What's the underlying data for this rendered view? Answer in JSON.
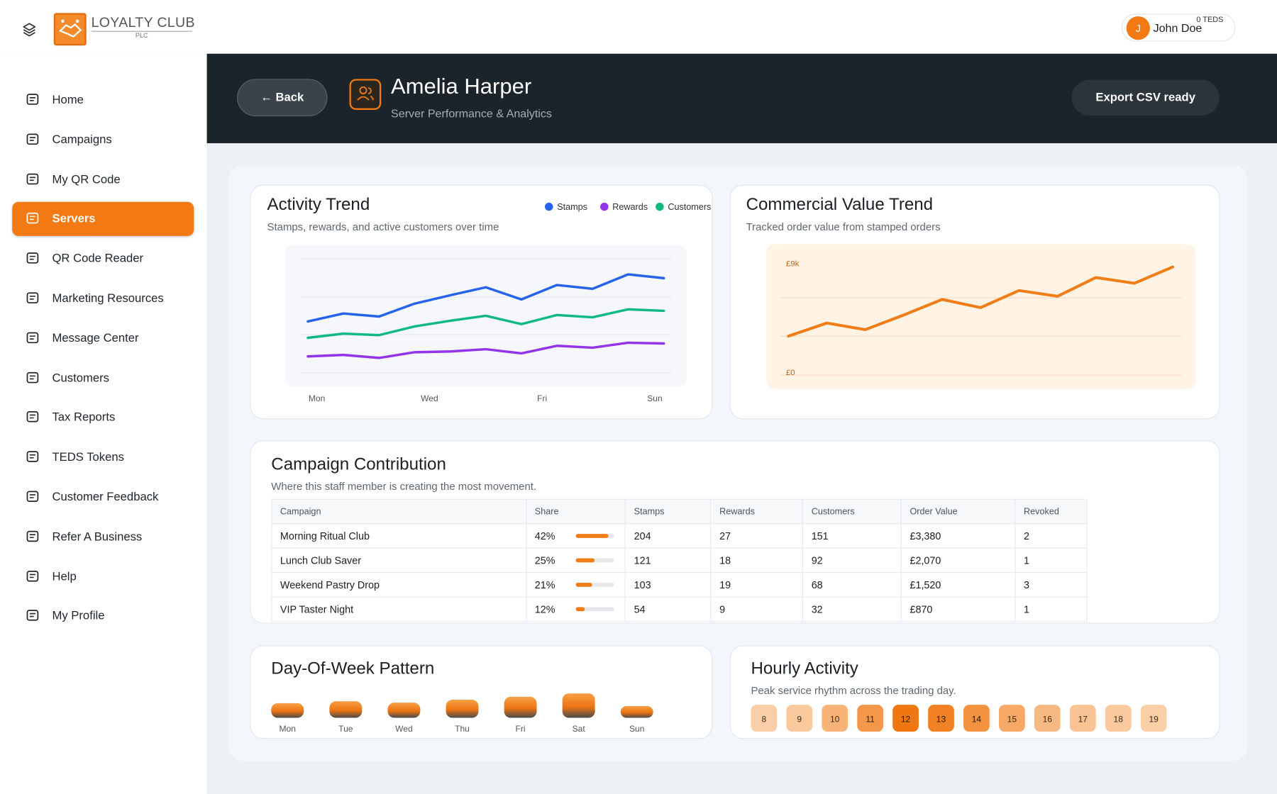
{
  "brand": {
    "name": "LOYALTY CLUB",
    "sub": "PLC"
  },
  "user": {
    "initial": "J",
    "name": "John Doe",
    "balance": "0 TEDS"
  },
  "nav": {
    "items": [
      "Home",
      "Campaigns",
      "My QR Code",
      "Servers",
      "QR Code Reader",
      "Marketing Resources",
      "Message Center",
      "Customers",
      "Tax Reports",
      "TEDS Tokens",
      "Customer Feedback",
      "Refer A Business",
      "Help",
      "My Profile"
    ],
    "active": 3
  },
  "header": {
    "back": "← Back",
    "name": "Amelia Harper",
    "subtitle": "Server Performance & Analytics",
    "export": "Export CSV ready"
  },
  "activity_trend": {
    "type": "line",
    "title": "Activity Trend",
    "subtitle": "Stamps, rewards, and active customers over time",
    "x_labels": [
      "Mon",
      "Wed",
      "Fri",
      "Sun"
    ],
    "ylim": [
      0,
      300
    ],
    "series": [
      {
        "name": "Stamps",
        "color": "#2563eb",
        "values": [
          135,
          156,
          148,
          182,
          204,
          225,
          193,
          231,
          221,
          259,
          249
        ]
      },
      {
        "name": "Rewards",
        "color": "#9333ea",
        "values": [
          43,
          47,
          39,
          54,
          56,
          62,
          51,
          71,
          66,
          79,
          77
        ]
      },
      {
        "name": "Customers",
        "color": "#10b981",
        "values": [
          92,
          103,
          99,
          122,
          137,
          150,
          128,
          152,
          146,
          167,
          163
        ]
      }
    ]
  },
  "value_trend": {
    "type": "line",
    "title": "Commercial Value Trend",
    "subtitle": "Tracked order value from stamped orders",
    "color": "#f07d16",
    "ylim": [
      0,
      9000
    ],
    "yticks": [
      {
        "value": 0,
        "label": "£0"
      },
      {
        "value": 9000,
        "label": "£9k"
      }
    ],
    "values": [
      3060,
      4090,
      3570,
      4720,
      5940,
      5300,
      6640,
      6190,
      7660,
      7210,
      8490
    ]
  },
  "campaigns": {
    "title": "Campaign Contribution",
    "subtitle": "Where this staff member is creating the most movement.",
    "columns": [
      "Campaign",
      "Share",
      "Stamps",
      "Rewards",
      "Customers",
      "Order Value",
      "Revoked"
    ],
    "rows": [
      {
        "name": "Morning Ritual Club",
        "share": 42,
        "share_label": "42%",
        "stamps": 204,
        "rewards": 27,
        "customers": 151,
        "order_value": "£3,380",
        "revoked": 2
      },
      {
        "name": "Lunch Club Saver",
        "share": 25,
        "share_label": "25%",
        "stamps": 121,
        "rewards": 18,
        "customers": 92,
        "order_value": "£2,070",
        "revoked": 1
      },
      {
        "name": "Weekend Pastry Drop",
        "share": 21,
        "share_label": "21%",
        "stamps": 103,
        "rewards": 19,
        "customers": 68,
        "order_value": "£1,520",
        "revoked": 3
      },
      {
        "name": "VIP Taster Night",
        "share": 12,
        "share_label": "12%",
        "stamps": 54,
        "rewards": 9,
        "customers": 32,
        "order_value": "£870",
        "revoked": 1
      }
    ]
  },
  "day_pattern": {
    "type": "bar",
    "title": "Day-Of-Week Pattern",
    "categories": [
      "Mon",
      "Tue",
      "Wed",
      "Thu",
      "Fri",
      "Sat",
      "Sun"
    ],
    "values": [
      60,
      68,
      62,
      74,
      86,
      100,
      48
    ]
  },
  "hourly": {
    "type": "heatmap",
    "title": "Hourly Activity",
    "subtitle": "Peak service rhythm across the trading day.",
    "hours": [
      8,
      9,
      10,
      11,
      12,
      13,
      14,
      15,
      16,
      17,
      18,
      19
    ],
    "values": [
      20,
      25,
      45,
      70,
      100,
      90,
      75,
      55,
      40,
      30,
      25,
      20
    ]
  }
}
